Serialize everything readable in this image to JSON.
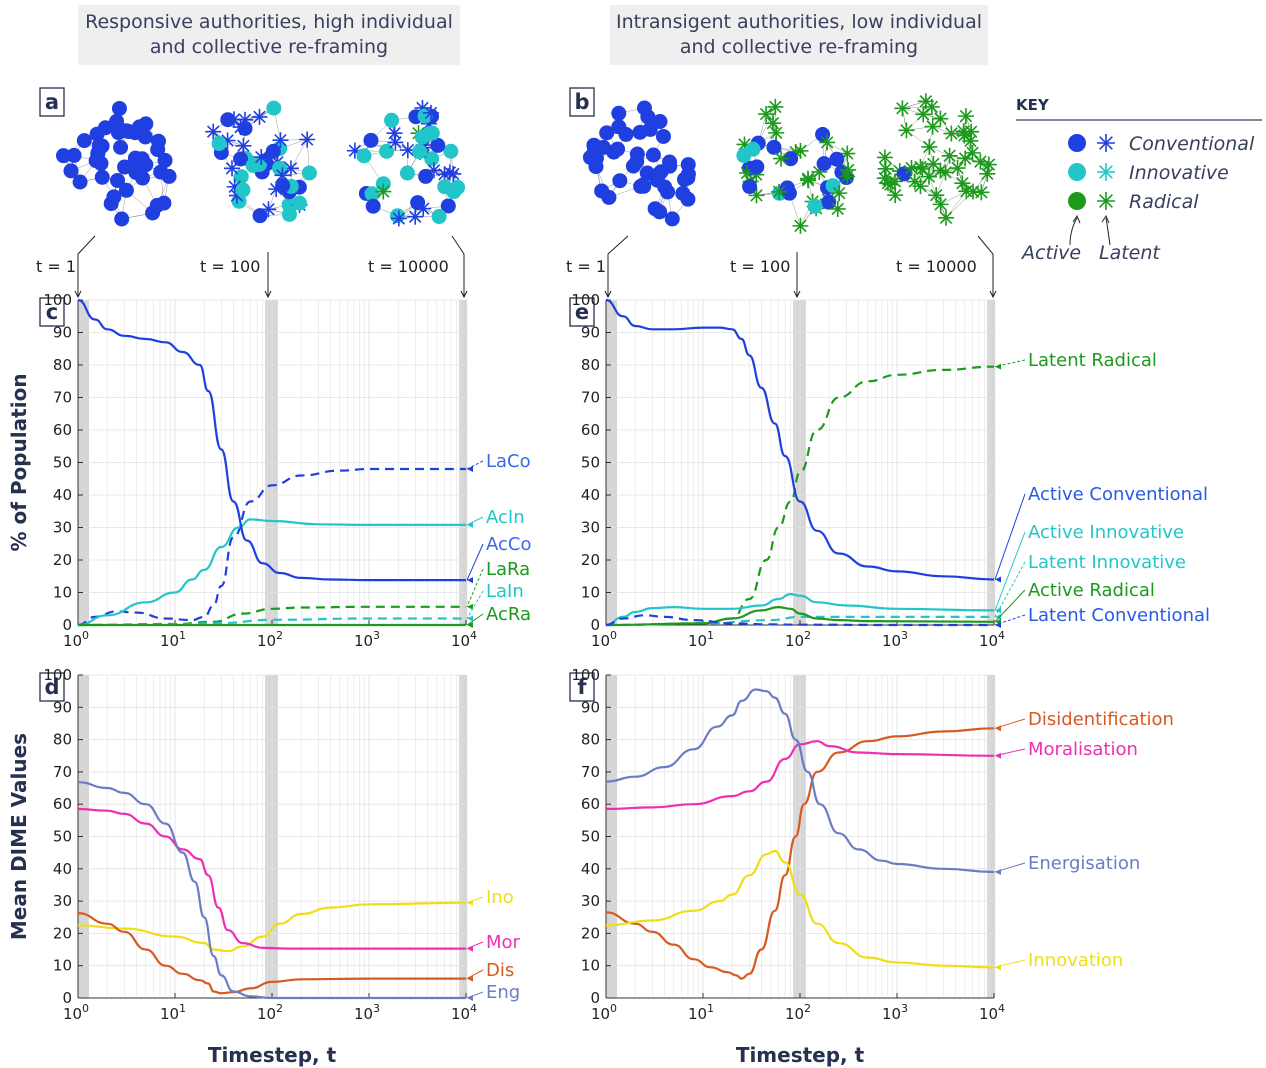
{
  "titles": {
    "left": [
      "Responsive authorities, high individual",
      "and collective re-framing"
    ],
    "right": [
      "Intransigent authorities, low individual",
      "and collective re-framing"
    ]
  },
  "panel_letters": [
    "a",
    "b",
    "c",
    "d",
    "e",
    "f"
  ],
  "time_labels": [
    "t = 1",
    "t = 100",
    "t = 10000"
  ],
  "key": {
    "heading": "KEY",
    "items": [
      "Conventional",
      "Innovative",
      "Radical"
    ],
    "active_label": "Active",
    "latent_label": "Latent"
  },
  "colors": {
    "conventional": "#1f3fe0",
    "innovative": "#22c6c8",
    "radical": "#1b9a1b",
    "label_text": "#38405e",
    "dis": "#d65a22",
    "mor": "#ee2fb2",
    "ino": "#f0de14",
    "eng": "#6b7cc4",
    "axis_title": "#26304f"
  },
  "chart_data": [
    {
      "id": "c",
      "type": "line",
      "xscale": "log",
      "xlim": [
        1,
        10000
      ],
      "ylim": [
        0,
        100
      ],
      "xlabel": "",
      "ylabel": "% of Population",
      "xticks": [
        "10^0",
        "10^1",
        "10^2",
        "10^3",
        "10^4"
      ],
      "yticks": [
        0,
        10,
        20,
        30,
        40,
        50,
        60,
        70,
        80,
        90,
        100
      ],
      "series": [
        {
          "name": "LaCo",
          "style": "dashed",
          "x": [
            1,
            1.5,
            2.5,
            4,
            8,
            15,
            20,
            25,
            30,
            40,
            60,
            100,
            200,
            500,
            1000,
            10000
          ],
          "y": [
            0,
            2.5,
            4.2,
            3.8,
            2,
            1.5,
            2.5,
            6,
            12,
            27,
            38,
            43,
            46,
            47.5,
            48,
            48
          ]
        },
        {
          "name": "AcIn",
          "style": "solid",
          "x": [
            1,
            2,
            5,
            10,
            15,
            20,
            30,
            45,
            60,
            100,
            300,
            1000,
            10000
          ],
          "y": [
            0,
            3,
            7,
            10,
            14,
            17,
            24,
            30,
            32.5,
            32,
            31,
            30.8,
            30.8
          ]
        },
        {
          "name": "AcCo",
          "style": "solid",
          "x": [
            1,
            1.5,
            2,
            3,
            5,
            8,
            12,
            18,
            22,
            30,
            40,
            55,
            80,
            120,
            200,
            400,
            1000,
            10000
          ],
          "y": [
            100,
            94,
            91,
            89,
            88,
            87,
            84,
            80,
            72,
            54,
            38,
            26,
            19,
            16,
            14.5,
            14,
            13.8,
            13.8
          ]
        },
        {
          "name": "LaRa",
          "style": "dashed",
          "x": [
            1,
            10,
            25,
            50,
            100,
            200,
            1000,
            10000
          ],
          "y": [
            0,
            0.3,
            1,
            3.5,
            5,
            5.4,
            5.6,
            5.6
          ]
        },
        {
          "name": "LaIn",
          "style": "dashed",
          "x": [
            1,
            10,
            30,
            100,
            1000,
            10000
          ],
          "y": [
            0,
            0.2,
            0.6,
            1.6,
            2,
            2
          ]
        },
        {
          "name": "AcRa",
          "style": "solid",
          "x": [
            1,
            100,
            10000
          ],
          "y": [
            0,
            0,
            0
          ]
        }
      ]
    },
    {
      "id": "e",
      "type": "line",
      "xscale": "log",
      "xlim": [
        1,
        10000
      ],
      "ylim": [
        0,
        100
      ],
      "xlabel": "",
      "ylabel": "",
      "xticks": [
        "10^0",
        "10^1",
        "10^2",
        "10^3",
        "10^4"
      ],
      "yticks": [
        0,
        10,
        20,
        30,
        40,
        50,
        60,
        70,
        80,
        90,
        100
      ],
      "series": [
        {
          "name": "Latent Radical",
          "style": "dashed",
          "x": [
            1,
            10,
            20,
            30,
            45,
            60,
            80,
            100,
            150,
            250,
            500,
            1000,
            3000,
            10000
          ],
          "y": [
            0,
            0.5,
            2,
            8,
            20,
            30,
            38,
            47,
            60,
            70,
            75,
            77,
            78.5,
            79.5
          ]
        },
        {
          "name": "Active Conventional",
          "style": "solid",
          "x": [
            1,
            1.5,
            2,
            3,
            5,
            10,
            15,
            20,
            25,
            30,
            40,
            55,
            70,
            100,
            150,
            250,
            500,
            1000,
            3000,
            10000
          ],
          "y": [
            100,
            95,
            92,
            91,
            91,
            91.5,
            91.5,
            91,
            88,
            83,
            73,
            62,
            52,
            38,
            29,
            22,
            18,
            16.5,
            15,
            14
          ]
        },
        {
          "name": "Active Innovative",
          "style": "solid",
          "x": [
            1,
            1.5,
            2,
            3,
            5,
            10,
            20,
            40,
            60,
            80,
            100,
            150,
            300,
            1000,
            10000
          ],
          "y": [
            0,
            2.5,
            4,
            5.2,
            5.5,
            5,
            5,
            6,
            8,
            9.5,
            9,
            7,
            6,
            5,
            4.5
          ]
        },
        {
          "name": "Latent Innovative",
          "style": "dashed",
          "x": [
            1,
            10,
            50,
            100,
            300,
            1000,
            10000
          ],
          "y": [
            0,
            0.5,
            1.5,
            2.5,
            2.5,
            2.5,
            2.5
          ]
        },
        {
          "name": "Active Radical",
          "style": "solid",
          "x": [
            1,
            10,
            20,
            40,
            60,
            80,
            100,
            150,
            250,
            500,
            10000
          ],
          "y": [
            0,
            0.5,
            2,
            4.5,
            5.5,
            5,
            3.5,
            2,
            1.5,
            1.2,
            1
          ]
        },
        {
          "name": "Latent Conventional",
          "style": "dashed",
          "x": [
            1,
            1.5,
            2.5,
            4,
            8,
            20,
            50,
            100,
            1000,
            10000
          ],
          "y": [
            0,
            2,
            3,
            2.5,
            1.5,
            0.5,
            0.2,
            0.1,
            0,
            0
          ]
        }
      ]
    },
    {
      "id": "d",
      "type": "line",
      "xscale": "log",
      "xlim": [
        1,
        10000
      ],
      "ylim": [
        0,
        100
      ],
      "xlabel": "Timestep, t",
      "ylabel": "Mean DIME Values",
      "xticks": [
        "10^0",
        "10^1",
        "10^2",
        "10^3",
        "10^4"
      ],
      "yticks": [
        0,
        10,
        20,
        30,
        40,
        50,
        60,
        70,
        80,
        90,
        100
      ],
      "series": [
        {
          "name": "Ino",
          "style": "solid",
          "x": [
            1,
            3,
            10,
            20,
            25,
            35,
            50,
            80,
            120,
            200,
            400,
            1000,
            10000
          ],
          "y": [
            22.5,
            21.5,
            19,
            17,
            15,
            14.5,
            16,
            19,
            23,
            26,
            28,
            29,
            29.5
          ]
        },
        {
          "name": "Mor",
          "style": "solid",
          "x": [
            1,
            2,
            3,
            5,
            8,
            12,
            18,
            22,
            28,
            35,
            50,
            80,
            150,
            1000,
            10000
          ],
          "y": [
            58.5,
            58,
            57,
            54,
            50,
            46,
            43,
            38,
            28,
            21,
            17,
            15.5,
            15.3,
            15.3,
            15.3
          ]
        },
        {
          "name": "Dis",
          "style": "solid",
          "x": [
            1,
            2,
            3,
            5,
            8,
            12,
            18,
            22,
            25,
            30,
            40,
            60,
            100,
            200,
            1000,
            10000
          ],
          "y": [
            26.3,
            23,
            20.5,
            15,
            10,
            7.5,
            5.5,
            4.5,
            2,
            1.5,
            1.8,
            3,
            5,
            5.8,
            6,
            6
          ]
        },
        {
          "name": "Eng",
          "style": "solid",
          "x": [
            1,
            2,
            3,
            5,
            8,
            12,
            16,
            20,
            25,
            30,
            40,
            60,
            100,
            200,
            1000,
            10000
          ],
          "y": [
            66.8,
            65,
            63.5,
            60,
            54,
            45,
            36,
            25,
            13,
            7,
            2,
            0.5,
            0,
            0,
            0,
            0
          ]
        }
      ]
    },
    {
      "id": "f",
      "type": "line",
      "xscale": "log",
      "xlim": [
        1,
        10000
      ],
      "ylim": [
        0,
        100
      ],
      "xlabel": "Timestep, t",
      "ylabel": "",
      "xticks": [
        "10^0",
        "10^1",
        "10^2",
        "10^3",
        "10^4"
      ],
      "yticks": [
        0,
        10,
        20,
        30,
        40,
        50,
        60,
        70,
        80,
        90,
        100
      ],
      "series": [
        {
          "name": "Disidentification",
          "style": "solid",
          "x": [
            1,
            2,
            3,
            5,
            8,
            12,
            18,
            22,
            25,
            30,
            40,
            55,
            70,
            90,
            110,
            150,
            250,
            500,
            1000,
            3000,
            10000
          ],
          "y": [
            26.5,
            23,
            20.5,
            16.5,
            12,
            9.5,
            8,
            7,
            6,
            7.5,
            15,
            27,
            38,
            50,
            60,
            70,
            76,
            79.5,
            81,
            82.5,
            83.5
          ]
        },
        {
          "name": "Moralisation",
          "style": "solid",
          "x": [
            1,
            3,
            8,
            20,
            30,
            45,
            70,
            100,
            150,
            200,
            400,
            1000,
            10000
          ],
          "y": [
            58.5,
            59,
            60,
            62.5,
            64,
            67,
            74,
            78.5,
            79.5,
            78,
            76,
            75.5,
            75
          ]
        },
        {
          "name": "Energisation",
          "style": "solid",
          "x": [
            1,
            2,
            4,
            8,
            14,
            20,
            25,
            35,
            45,
            55,
            70,
            90,
            120,
            160,
            250,
            400,
            700,
            1000,
            3000,
            10000
          ],
          "y": [
            67,
            68.5,
            71.5,
            77,
            84,
            87.5,
            92,
            95.5,
            95,
            93,
            88,
            80,
            70,
            60,
            51,
            46,
            42.5,
            41.5,
            40,
            39
          ]
        },
        {
          "name": "Innovation",
          "style": "solid",
          "x": [
            1,
            3,
            8,
            15,
            20,
            30,
            45,
            55,
            70,
            100,
            150,
            250,
            500,
            1000,
            3000,
            10000
          ],
          "y": [
            22.5,
            24,
            27,
            30,
            32,
            38,
            44.5,
            45.5,
            42,
            32,
            23,
            17,
            12.5,
            11,
            10,
            9.5
          ]
        }
      ]
    }
  ]
}
